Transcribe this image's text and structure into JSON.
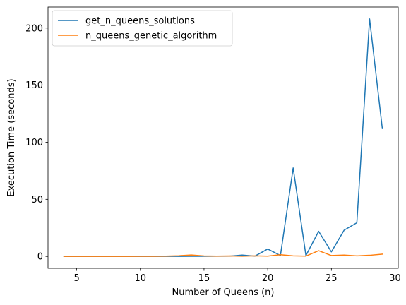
{
  "chart_data": {
    "type": "line",
    "title": "",
    "xlabel": "Number of Queens (n)",
    "ylabel": "Execution Time (seconds)",
    "xlim": [
      2.75,
      30.25
    ],
    "ylim": [
      -10.4,
      218.4
    ],
    "x_ticks": [
      5,
      10,
      15,
      20,
      25,
      30
    ],
    "y_ticks": [
      0,
      50,
      100,
      150,
      200
    ],
    "grid": false,
    "legend_position": "top-left",
    "x": [
      4,
      5,
      6,
      7,
      8,
      9,
      10,
      11,
      12,
      13,
      14,
      15,
      16,
      17,
      18,
      19,
      20,
      21,
      22,
      23,
      24,
      25,
      26,
      27,
      28,
      29
    ],
    "series": [
      {
        "name": "get_n_queens_solutions",
        "color": "#1f77b4",
        "values": [
          0,
          0,
          0,
          0,
          0,
          0,
          0,
          0,
          0,
          0,
          0.1,
          0.1,
          0.2,
          0.3,
          1.2,
          0.3,
          6.5,
          0.8,
          77.5,
          0.8,
          22,
          4,
          23,
          29.5,
          208,
          112
        ]
      },
      {
        "name": "n_queens_genetic_algorithm",
        "color": "#ff7f0e",
        "values": [
          0,
          0,
          0,
          0,
          0,
          0,
          0.1,
          0.1,
          0.3,
          0.6,
          1.3,
          0.4,
          0.3,
          0.4,
          0.2,
          0.5,
          0.3,
          1.5,
          0.5,
          0.3,
          5,
          0.8,
          1.2,
          0.5,
          1,
          2
        ]
      }
    ]
  }
}
